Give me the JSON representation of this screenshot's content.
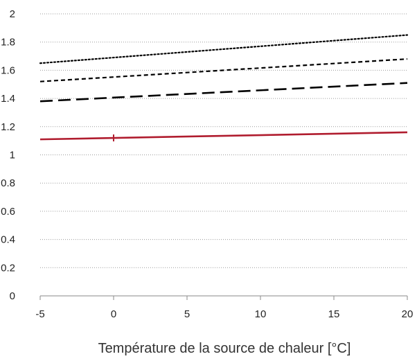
{
  "chart_data": {
    "type": "line",
    "title": "",
    "xlabel": "Température de la source de chaleur [°C]",
    "ylabel": "",
    "xlim": [
      -5,
      20
    ],
    "ylim": [
      0,
      2
    ],
    "x_ticks": [
      "-5",
      "0",
      "5",
      "10",
      "15",
      "20"
    ],
    "y_ticks": [
      "0",
      "0.2",
      "0.4",
      "0.6",
      "0.8",
      "1",
      "1.2",
      "1.4",
      "1.6",
      "1.8",
      "2"
    ],
    "grid": "horizontal dotted",
    "legend": "none",
    "series": [
      {
        "style": "dotted",
        "color": "#000000",
        "x": [
          -5,
          20
        ],
        "y": [
          1.65,
          1.85
        ]
      },
      {
        "style": "short-dashed",
        "color": "#000000",
        "x": [
          -5,
          20
        ],
        "y": [
          1.52,
          1.68
        ]
      },
      {
        "style": "long-dashed",
        "color": "#000000",
        "x": [
          -5,
          20
        ],
        "y": [
          1.38,
          1.51
        ]
      },
      {
        "style": "solid",
        "color": "#b01c2e",
        "x": [
          -5,
          20
        ],
        "y": [
          1.11,
          1.16
        ]
      }
    ],
    "markers": [
      {
        "symbol": "plus",
        "color": "#b01c2e",
        "x": 0,
        "y": 1.12
      }
    ]
  }
}
